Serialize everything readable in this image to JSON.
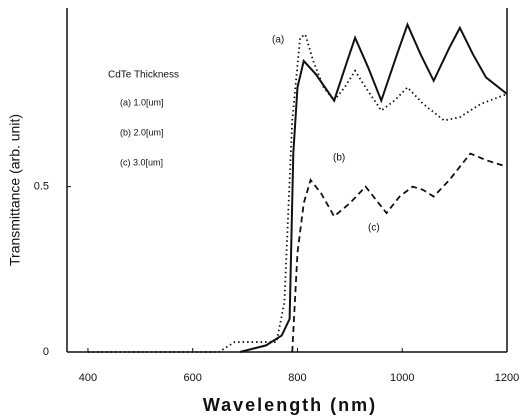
{
  "chart_data": {
    "type": "line",
    "xlabel": "Wavelength (nm)",
    "ylabel": "Transmittance (arb. unit)",
    "xlim": [
      360,
      1200
    ],
    "xticks": [
      400,
      600,
      800,
      1000,
      1200
    ],
    "ylim": [
      0,
      1.04
    ],
    "yticks": [
      0,
      0.5
    ],
    "grid": false,
    "legend_title": "CdTe Thickness",
    "legend_entries": [
      "(a) 1.0[um]",
      "(b) 2.0[um]",
      "(c) 3.0[um]"
    ],
    "annotations": [
      "(a)",
      "(b)",
      "(c)"
    ],
    "series": [
      {
        "name": "(a)",
        "color": "#111",
        "style": "dotted",
        "x": [
          400,
          650,
          680,
          760,
          775,
          790,
          805,
          815,
          830,
          850,
          870,
          890,
          910,
          930,
          960,
          985,
          1010,
          1040,
          1080,
          1110,
          1150,
          1200
        ],
        "values": [
          0,
          0,
          0.03,
          0.03,
          0.15,
          0.7,
          0.95,
          0.96,
          0.88,
          0.8,
          0.76,
          0.8,
          0.85,
          0.8,
          0.73,
          0.76,
          0.8,
          0.75,
          0.7,
          0.71,
          0.75,
          0.78
        ]
      },
      {
        "name": "(b)",
        "color": "#111",
        "style": "solid",
        "x": [
          690,
          740,
          770,
          785,
          792,
          800,
          812,
          835,
          870,
          895,
          910,
          935,
          960,
          990,
          1010,
          1035,
          1060,
          1090,
          1110,
          1135,
          1160,
          1200
        ],
        "values": [
          0,
          0.02,
          0.05,
          0.1,
          0.6,
          0.8,
          0.88,
          0.84,
          0.76,
          0.88,
          0.95,
          0.86,
          0.76,
          0.9,
          0.99,
          0.9,
          0.82,
          0.92,
          0.98,
          0.9,
          0.83,
          0.78
        ]
      },
      {
        "name": "(c)",
        "color": "#111",
        "style": "dashed",
        "x": [
          790,
          800,
          812,
          825,
          845,
          870,
          900,
          930,
          950,
          970,
          995,
          1020,
          1040,
          1060,
          1090,
          1130,
          1160,
          1200
        ],
        "values": [
          0,
          0.3,
          0.45,
          0.52,
          0.48,
          0.41,
          0.45,
          0.5,
          0.46,
          0.42,
          0.47,
          0.5,
          0.49,
          0.47,
          0.52,
          0.6,
          0.58,
          0.56
        ]
      }
    ]
  }
}
